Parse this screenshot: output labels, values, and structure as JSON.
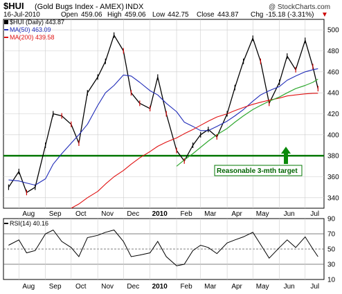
{
  "header": {
    "symbol": "$HUI",
    "name": "(Gold Bugs Index - AMEX)",
    "exchange": "INDX",
    "watermark": "@ StockCharts.com",
    "date": "16-Jul-2010",
    "open_label": "Open",
    "open": "459.06",
    "high_label": "High",
    "high": "459.06",
    "low_label": "Low",
    "low": "442.75",
    "close_label": "Close",
    "close": "443.87",
    "chg_label": "Chg",
    "chg": "-15.18 (-3.31%)",
    "chg_arrow": "▼"
  },
  "legend": {
    "main": "$HUI (Daily) 443.87",
    "ma50": "MA(50) 463.09",
    "ma200": "MA(200) 439.58"
  },
  "rsi_panel": {
    "legend": "RSI(14) 40.16",
    "ticks": [
      "90",
      "70",
      "50",
      "30",
      "10"
    ]
  },
  "annotation": {
    "target_label": "Reasonable 3-mth target",
    "target_level": 380
  },
  "x_axis": {
    "months": [
      "Aug",
      "Sep",
      "Oct",
      "Nov",
      "Dec",
      "2010",
      "Feb",
      "Mar",
      "Apr",
      "May",
      "Jun",
      "Jul"
    ],
    "bold_month": "2010"
  },
  "y_axis": {
    "ticks": [
      "500",
      "480",
      "460",
      "440",
      "420",
      "400",
      "380",
      "360",
      "340"
    ],
    "range": [
      330,
      510
    ]
  },
  "colors": {
    "price": "#000000",
    "price_down": "#cc0000",
    "ma50": "#1f2bb8",
    "ma200": "#e01010",
    "trendline": "#2fa82f",
    "target_line": "#007700",
    "grid": "#cccccc",
    "rsi": "#000000"
  },
  "chart_data": {
    "type": "line",
    "title": "$HUI (Gold Bugs Index - AMEX) INDX",
    "x": [
      "2009-07-20",
      "2009-08-01",
      "2009-08-10",
      "2009-08-20",
      "2009-09-01",
      "2009-09-10",
      "2009-09-20",
      "2009-10-01",
      "2009-10-10",
      "2009-10-20",
      "2009-11-01",
      "2009-11-10",
      "2009-11-20",
      "2009-12-01",
      "2009-12-10",
      "2009-12-20",
      "2010-01-01",
      "2010-01-10",
      "2010-01-20",
      "2010-02-01",
      "2010-02-10",
      "2010-02-20",
      "2010-03-01",
      "2010-03-10",
      "2010-03-20",
      "2010-04-01",
      "2010-04-10",
      "2010-04-20",
      "2010-05-01",
      "2010-05-10",
      "2010-05-20",
      "2010-06-01",
      "2010-06-10",
      "2010-06-20",
      "2010-07-01",
      "2010-07-10",
      "2010-07-16"
    ],
    "series": [
      {
        "name": "$HUI (Daily)",
        "values": [
          350,
          365,
          345,
          350,
          390,
          420,
          418,
          410,
          392,
          440,
          455,
          470,
          495,
          480,
          440,
          430,
          425,
          455,
          420,
          385,
          375,
          390,
          400,
          405,
          398,
          420,
          445,
          470,
          492,
          470,
          430,
          450,
          475,
          462,
          490,
          465,
          444
        ]
      },
      {
        "name": "MA(50)",
        "values": [
          357,
          356,
          354,
          352,
          358,
          372,
          382,
          392,
          400,
          410,
          428,
          440,
          447,
          457,
          456,
          450,
          442,
          438,
          430,
          422,
          412,
          408,
          404,
          404,
          408,
          413,
          418,
          424,
          432,
          438,
          442,
          446,
          452,
          456,
          460,
          462,
          463
        ]
      },
      {
        "name": "MA(200)",
        "values": [
          null,
          null,
          null,
          null,
          null,
          null,
          null,
          330,
          334,
          340,
          346,
          353,
          360,
          366,
          372,
          378,
          384,
          389,
          393,
          397,
          401,
          405,
          409,
          413,
          417,
          420,
          423,
          426,
          429,
          431,
          433,
          435,
          437,
          438,
          439,
          439.5,
          439.58
        ]
      },
      {
        "name": "Trendline",
        "values": [
          null,
          null,
          null,
          null,
          null,
          null,
          null,
          null,
          null,
          null,
          null,
          null,
          null,
          null,
          null,
          null,
          null,
          null,
          null,
          370,
          376,
          382,
          388,
          394,
          400,
          406,
          412,
          418,
          424,
          428,
          432,
          436,
          440,
          444,
          447,
          450,
          453
        ]
      }
    ],
    "rsi": {
      "name": "RSI(14)",
      "last": 40.16,
      "values": [
        55,
        62,
        45,
        48,
        70,
        75,
        60,
        52,
        40,
        65,
        68,
        72,
        75,
        60,
        40,
        42,
        45,
        60,
        40,
        28,
        30,
        48,
        55,
        52,
        44,
        58,
        62,
        66,
        72,
        56,
        38,
        52,
        62,
        52,
        66,
        50,
        40
      ],
      "levels": [
        70,
        50,
        30
      ],
      "ylim": [
        10,
        90
      ]
    },
    "xlabel": "",
    "ylabel": "",
    "ylim": [
      330,
      510
    ]
  }
}
